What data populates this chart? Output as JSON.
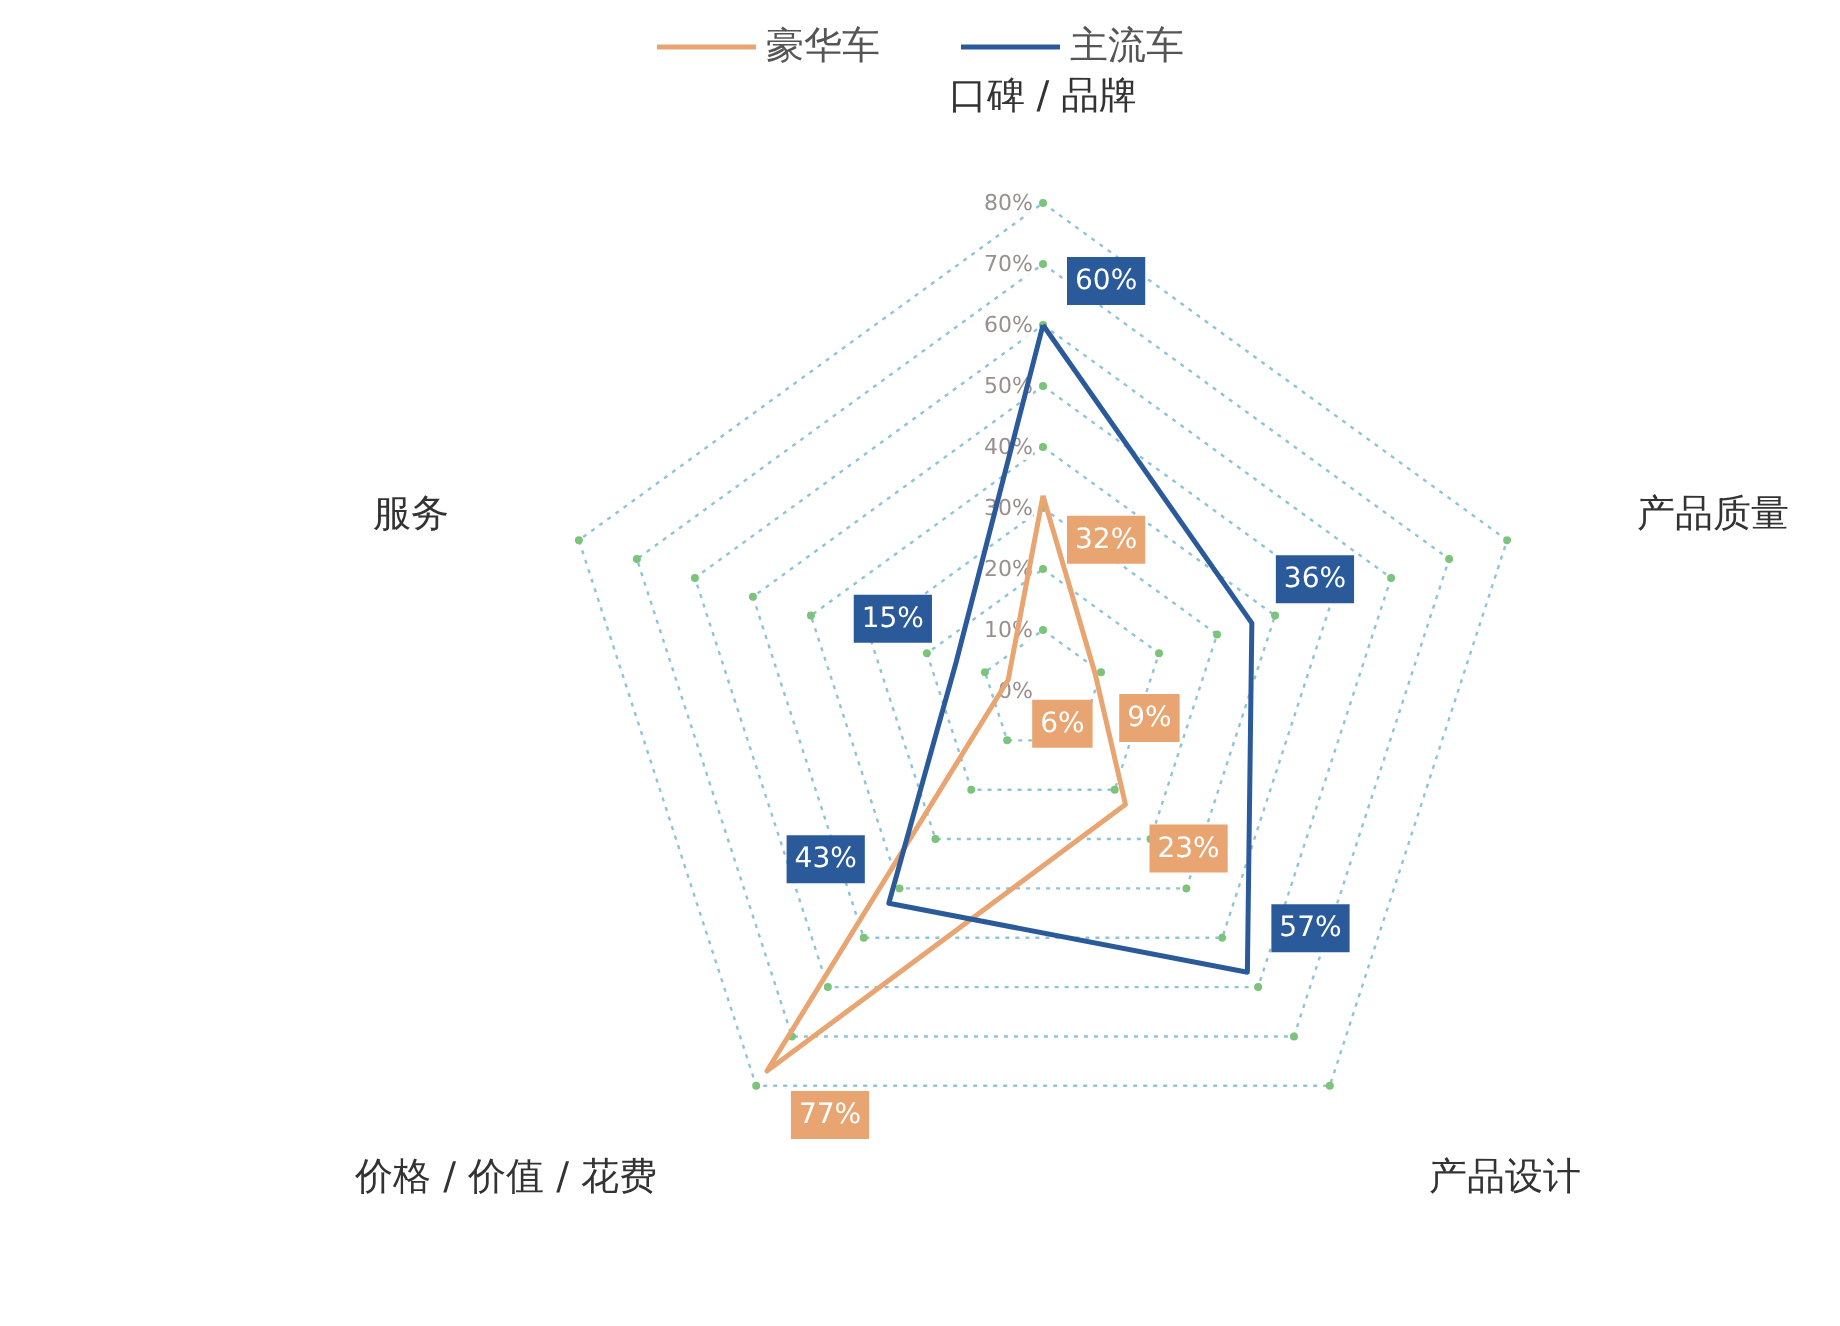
{
  "chart_data": {
    "type": "radar",
    "categories": [
      "口碑 / 品牌",
      "产品质量",
      "产品设计",
      "价格 / 价值 / 花费",
      "服务"
    ],
    "series": [
      {
        "name": "豪华车",
        "color": "#e8a571",
        "values": [
          32,
          9,
          23,
          77,
          6
        ],
        "value_labels": [
          "32%",
          "9%",
          "23%",
          "77%",
          "6%"
        ]
      },
      {
        "name": "主流车",
        "color": "#2b5a9b",
        "values": [
          60,
          36,
          57,
          43,
          15
        ],
        "value_labels": [
          "60%",
          "36%",
          "57%",
          "43%",
          "15%"
        ]
      }
    ],
    "ylim": [
      0,
      80
    ],
    "yticks": [
      {
        "value": 0,
        "label": "0%"
      },
      {
        "value": 10,
        "label": "10%"
      },
      {
        "value": 20,
        "label": "20%"
      },
      {
        "value": 30,
        "label": "30%"
      },
      {
        "value": 40,
        "label": "40%"
      },
      {
        "value": 50,
        "label": "50%"
      },
      {
        "value": 60,
        "label": "60%"
      },
      {
        "value": 70,
        "label": "70%"
      },
      {
        "value": 80,
        "label": "80%"
      }
    ],
    "legend": "top",
    "grid": true
  }
}
